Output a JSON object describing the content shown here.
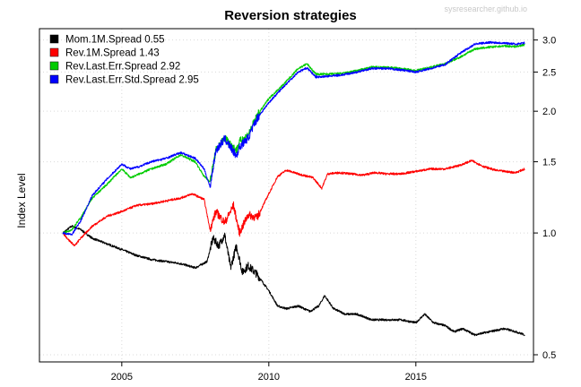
{
  "chart_data": {
    "type": "line",
    "title": "Reversion strategies",
    "credit": "sysresearcher.github.io",
    "ylabel": "Index Level",
    "xlabel": "",
    "y_scale": "log",
    "xlim": [
      2002.2,
      2019.0
    ],
    "ylim": [
      0.48,
      3.2
    ],
    "grid": true,
    "legend_position": "top-left",
    "x_ticks": [
      {
        "value": 2005,
        "label": "2005"
      },
      {
        "value": 2010,
        "label": "2010"
      },
      {
        "value": 2015,
        "label": "2015"
      }
    ],
    "y_ticks": [
      {
        "value": 0.5,
        "label": "0.5"
      },
      {
        "value": 1.0,
        "label": "1.0"
      },
      {
        "value": 1.5,
        "label": "1.5"
      },
      {
        "value": 2.0,
        "label": "2.0"
      },
      {
        "value": 2.5,
        "label": "2.5"
      },
      {
        "value": 3.0,
        "label": "3.0"
      }
    ],
    "series": [
      {
        "name": "Mom.1M.Spread 0.55",
        "color": "#000000",
        "x": [
          2003.0,
          2003.3,
          2003.6,
          2004.0,
          2004.5,
          2005.0,
          2005.5,
          2006.0,
          2006.5,
          2007.0,
          2007.5,
          2007.9,
          2008.1,
          2008.3,
          2008.5,
          2008.7,
          2008.9,
          2009.1,
          2009.3,
          2009.6,
          2010.0,
          2010.3,
          2010.6,
          2011.0,
          2011.4,
          2011.7,
          2011.9,
          2012.2,
          2012.6,
          2013.0,
          2013.5,
          2014.0,
          2014.5,
          2015.0,
          2015.3,
          2015.6,
          2016.0,
          2016.3,
          2016.6,
          2017.0,
          2017.5,
          2018.0,
          2018.4,
          2018.7
        ],
        "y": [
          1.0,
          1.04,
          1.02,
          0.97,
          0.94,
          0.91,
          0.88,
          0.86,
          0.85,
          0.84,
          0.82,
          0.85,
          0.97,
          0.93,
          0.99,
          0.82,
          0.93,
          0.8,
          0.83,
          0.79,
          0.72,
          0.66,
          0.65,
          0.66,
          0.64,
          0.66,
          0.7,
          0.65,
          0.63,
          0.63,
          0.61,
          0.61,
          0.61,
          0.6,
          0.63,
          0.6,
          0.59,
          0.57,
          0.58,
          0.56,
          0.57,
          0.58,
          0.57,
          0.56
        ]
      },
      {
        "name": "Rev.1M.Spread 1.43",
        "color": "#ff0000",
        "x": [
          2003.0,
          2003.2,
          2003.4,
          2003.6,
          2004.0,
          2004.5,
          2005.0,
          2005.5,
          2006.0,
          2006.5,
          2007.0,
          2007.4,
          2007.8,
          2008.0,
          2008.2,
          2008.5,
          2008.8,
          2009.0,
          2009.3,
          2009.6,
          2010.0,
          2010.3,
          2010.6,
          2011.0,
          2011.5,
          2011.8,
          2012.0,
          2012.4,
          2012.8,
          2013.2,
          2013.6,
          2014.0,
          2014.5,
          2015.0,
          2015.5,
          2016.0,
          2016.5,
          2016.9,
          2017.3,
          2017.7,
          2018.0,
          2018.4,
          2018.7
        ],
        "y": [
          1.0,
          0.96,
          0.93,
          0.97,
          1.04,
          1.1,
          1.13,
          1.17,
          1.18,
          1.2,
          1.22,
          1.25,
          1.21,
          1.02,
          1.13,
          1.06,
          1.17,
          1.0,
          1.11,
          1.09,
          1.25,
          1.38,
          1.43,
          1.4,
          1.37,
          1.29,
          1.4,
          1.41,
          1.4,
          1.39,
          1.41,
          1.4,
          1.4,
          1.42,
          1.44,
          1.44,
          1.47,
          1.51,
          1.46,
          1.43,
          1.42,
          1.41,
          1.44
        ]
      },
      {
        "name": "Rev.Last.Err.Spread 2.92",
        "color": "#00cc00",
        "x": [
          2003.0,
          2003.3,
          2003.6,
          2004.0,
          2004.5,
          2005.0,
          2005.3,
          2005.6,
          2006.0,
          2006.5,
          2007.0,
          2007.5,
          2007.8,
          2008.0,
          2008.2,
          2008.5,
          2008.9,
          2009.0,
          2009.3,
          2009.6,
          2010.0,
          2010.5,
          2011.0,
          2011.3,
          2011.6,
          2012.0,
          2012.5,
          2013.0,
          2013.5,
          2014.0,
          2014.5,
          2015.0,
          2015.5,
          2016.0,
          2016.5,
          2017.0,
          2017.5,
          2018.0,
          2018.4,
          2018.7
        ],
        "y": [
          1.0,
          1.02,
          1.09,
          1.22,
          1.32,
          1.44,
          1.37,
          1.4,
          1.44,
          1.48,
          1.56,
          1.5,
          1.38,
          1.34,
          1.6,
          1.72,
          1.6,
          1.68,
          1.75,
          1.95,
          2.15,
          2.33,
          2.55,
          2.62,
          2.47,
          2.47,
          2.48,
          2.52,
          2.57,
          2.57,
          2.55,
          2.52,
          2.57,
          2.62,
          2.72,
          2.85,
          2.88,
          2.9,
          2.89,
          2.92
        ]
      },
      {
        "name": "Rev.Last.Err.Std.Spread 2.95",
        "color": "#0000ff",
        "x": [
          2003.0,
          2003.3,
          2003.6,
          2004.0,
          2004.5,
          2005.0,
          2005.3,
          2005.6,
          2006.0,
          2006.5,
          2007.0,
          2007.5,
          2007.8,
          2008.0,
          2008.2,
          2008.5,
          2008.9,
          2009.0,
          2009.3,
          2009.6,
          2010.0,
          2010.5,
          2011.0,
          2011.3,
          2011.6,
          2012.0,
          2012.5,
          2013.0,
          2013.5,
          2014.0,
          2014.5,
          2015.0,
          2015.5,
          2016.0,
          2016.5,
          2017.0,
          2017.5,
          2018.0,
          2018.4,
          2018.7
        ],
        "y": [
          1.0,
          0.99,
          1.07,
          1.24,
          1.36,
          1.48,
          1.44,
          1.46,
          1.5,
          1.53,
          1.58,
          1.53,
          1.44,
          1.3,
          1.6,
          1.71,
          1.55,
          1.63,
          1.72,
          1.92,
          2.1,
          2.3,
          2.5,
          2.56,
          2.43,
          2.44,
          2.46,
          2.5,
          2.55,
          2.55,
          2.53,
          2.5,
          2.55,
          2.61,
          2.78,
          2.93,
          2.96,
          2.95,
          2.93,
          2.95
        ]
      }
    ]
  }
}
